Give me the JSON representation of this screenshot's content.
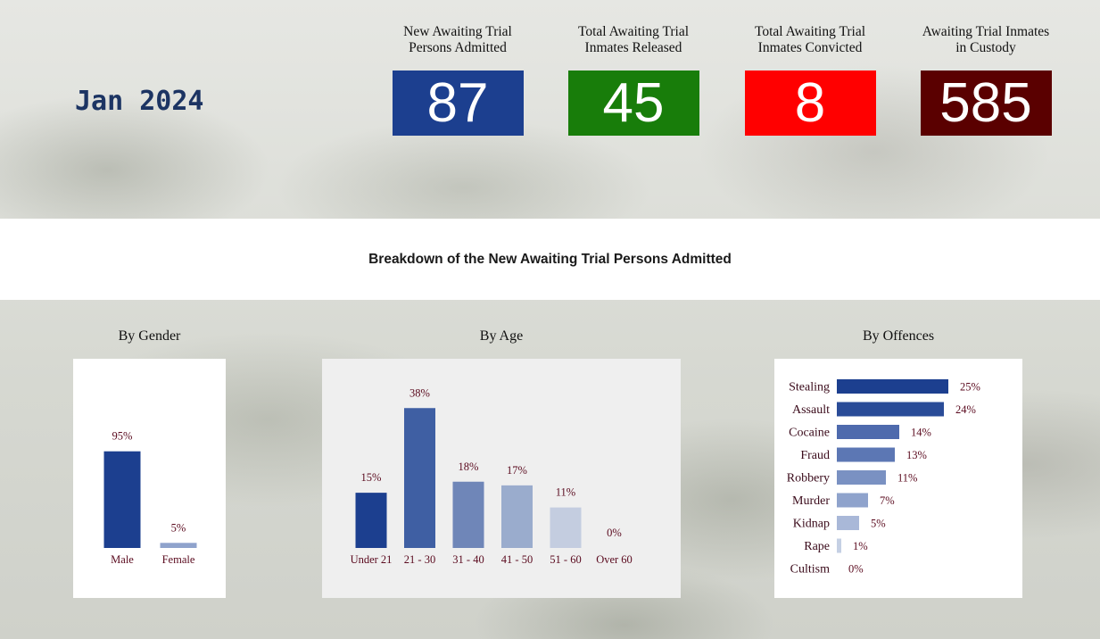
{
  "header": {
    "date": "Jan 2024",
    "kpis": [
      {
        "label_line1": "New Awaiting Trial",
        "label_line2": "Persons Admitted",
        "value": "87",
        "color": "#1c3f8f"
      },
      {
        "label_line1": "Total Awaiting Trial",
        "label_line2": "Inmates Released",
        "value": "45",
        "color": "#187d0a"
      },
      {
        "label_line1": "Total Awaiting Trial",
        "label_line2": "Inmates Convicted",
        "value": "8",
        "color": "#ff0000"
      },
      {
        "label_line1": "Awaiting Trial Inmates",
        "label_line2": "in Custody",
        "value": "585",
        "color": "#5a0000"
      }
    ]
  },
  "breakdown_title": "Breakdown of the New Awaiting Trial Persons Admitted",
  "sections": {
    "gender_title": "By Gender",
    "age_title": "By Age",
    "offences_title": "By Offences"
  },
  "chart_data": [
    {
      "type": "bar",
      "title": "By Gender",
      "categories": [
        "Male",
        "Female"
      ],
      "values": [
        95,
        5
      ],
      "value_labels": [
        "95%",
        "5%"
      ],
      "colors": [
        "#1c3f8f",
        "#8fa3cc"
      ],
      "ylim": [
        0,
        100
      ],
      "grid": false
    },
    {
      "type": "bar",
      "title": "By Age",
      "categories": [
        "Under 21",
        "21 - 30",
        "31 - 40",
        "41 - 50",
        "51 - 60",
        "Over 60"
      ],
      "values": [
        15,
        38,
        18,
        17,
        11,
        0
      ],
      "value_labels": [
        "15%",
        "38%",
        "18%",
        "17%",
        "11%",
        "0%"
      ],
      "colors": [
        "#1c3f8f",
        "#3f5fa3",
        "#6f86b8",
        "#9aaccd",
        "#c4cde0",
        "#dfe4ee"
      ],
      "ylim": [
        0,
        40
      ],
      "grid": false
    },
    {
      "type": "bar",
      "orientation": "horizontal",
      "title": "By Offences",
      "categories": [
        "Stealing",
        "Assault",
        "Cocaine",
        "Fraud",
        "Robbery",
        "Murder",
        "Kidnap",
        "Rape",
        "Cultism"
      ],
      "values": [
        25,
        24,
        14,
        13,
        11,
        7,
        5,
        1,
        0
      ],
      "value_labels": [
        "25%",
        "24%",
        "14%",
        "13%",
        "11%",
        "7%",
        "5%",
        "1%",
        "0%"
      ],
      "colors": [
        "#1c3f8f",
        "#2a4c98",
        "#4e6aad",
        "#5c77b4",
        "#7a91c2",
        "#8fa3cc",
        "#a9b8d8",
        "#c5d0e4",
        "#dfe5ef"
      ],
      "xlim": [
        0,
        25
      ],
      "grid": false
    }
  ]
}
